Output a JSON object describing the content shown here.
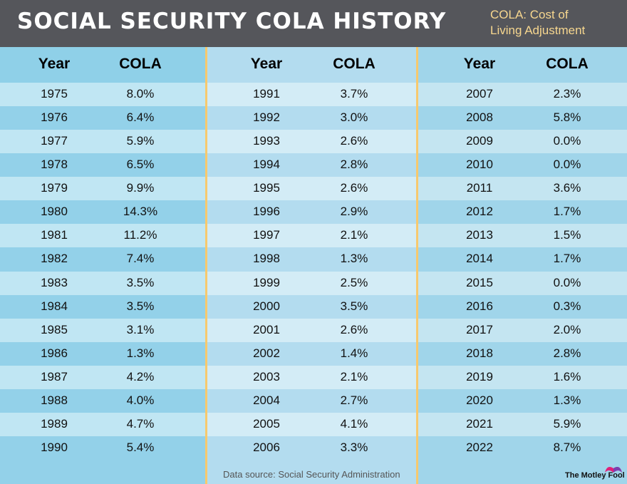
{
  "header": {
    "title": "SOCIAL SECURITY COLA HISTORY",
    "subtitle_line1": "COLA: Cost of",
    "subtitle_line2": "Living Adjustment"
  },
  "footer": {
    "source": "Data source: Social Security Administration",
    "logo": "The Motley Fool"
  },
  "colors": {
    "header_bg": "#55565b",
    "accent": "#f7d78f",
    "divider": "#f7c96e"
  },
  "chart_data": {
    "type": "table",
    "title": "SOCIAL SECURITY COLA HISTORY",
    "columns": [
      "Year",
      "COLA"
    ],
    "panels": [
      {
        "rows": [
          [
            "1975",
            "8.0%"
          ],
          [
            "1976",
            "6.4%"
          ],
          [
            "1977",
            "5.9%"
          ],
          [
            "1978",
            "6.5%"
          ],
          [
            "1979",
            "9.9%"
          ],
          [
            "1980",
            "14.3%"
          ],
          [
            "1981",
            "11.2%"
          ],
          [
            "1982",
            "7.4%"
          ],
          [
            "1983",
            "3.5%"
          ],
          [
            "1984",
            "3.5%"
          ],
          [
            "1985",
            "3.1%"
          ],
          [
            "1986",
            "1.3%"
          ],
          [
            "1987",
            "4.2%"
          ],
          [
            "1988",
            "4.0%"
          ],
          [
            "1989",
            "4.7%"
          ],
          [
            "1990",
            "5.4%"
          ]
        ]
      },
      {
        "rows": [
          [
            "1991",
            "3.7%"
          ],
          [
            "1992",
            "3.0%"
          ],
          [
            "1993",
            "2.6%"
          ],
          [
            "1994",
            "2.8%"
          ],
          [
            "1995",
            "2.6%"
          ],
          [
            "1996",
            "2.9%"
          ],
          [
            "1997",
            "2.1%"
          ],
          [
            "1998",
            "1.3%"
          ],
          [
            "1999",
            "2.5%"
          ],
          [
            "2000",
            "3.5%"
          ],
          [
            "2001",
            "2.6%"
          ],
          [
            "2002",
            "1.4%"
          ],
          [
            "2003",
            "2.1%"
          ],
          [
            "2004",
            "2.7%"
          ],
          [
            "2005",
            "4.1%"
          ],
          [
            "2006",
            "3.3%"
          ]
        ]
      },
      {
        "rows": [
          [
            "2007",
            "2.3%"
          ],
          [
            "2008",
            "5.8%"
          ],
          [
            "2009",
            "0.0%"
          ],
          [
            "2010",
            "0.0%"
          ],
          [
            "2011",
            "3.6%"
          ],
          [
            "2012",
            "1.7%"
          ],
          [
            "2013",
            "1.5%"
          ],
          [
            "2014",
            "1.7%"
          ],
          [
            "2015",
            "0.0%"
          ],
          [
            "2016",
            "0.3%"
          ],
          [
            "2017",
            "2.0%"
          ],
          [
            "2018",
            "2.8%"
          ],
          [
            "2019",
            "1.6%"
          ],
          [
            "2020",
            "1.3%"
          ],
          [
            "2021",
            "5.9%"
          ],
          [
            "2022",
            "8.7%"
          ]
        ]
      }
    ]
  }
}
